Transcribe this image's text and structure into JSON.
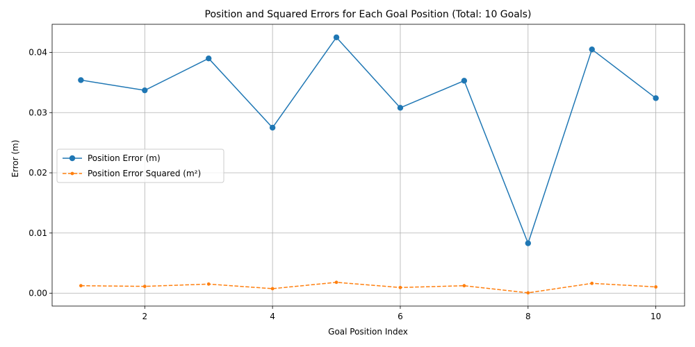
{
  "chart_data": {
    "type": "line",
    "title": "Position and Squared Errors for Each Goal Position (Total: 10 Goals)",
    "xlabel": "Goal Position Index",
    "ylabel": "Error (m)",
    "x": [
      1,
      2,
      3,
      4,
      5,
      6,
      7,
      8,
      9,
      10
    ],
    "xlim": [
      0.55,
      10.45
    ],
    "ylim": [
      -0.00213,
      0.04467
    ],
    "xticks": [
      2,
      4,
      6,
      8,
      10
    ],
    "yticks": [
      0.0,
      0.01,
      0.02,
      0.03,
      0.04
    ],
    "ytick_labels": [
      "0.00",
      "0.01",
      "0.02",
      "0.03",
      "0.04"
    ],
    "grid": true,
    "legend_position": "center-left",
    "series": [
      {
        "name": "Position Error (m)",
        "color": "#1f77b4",
        "line_style": "solid",
        "marker": "circle",
        "values": [
          0.0354,
          0.0337,
          0.039,
          0.0275,
          0.0425,
          0.0308,
          0.0353,
          0.0083,
          0.0405,
          0.0324
        ]
      },
      {
        "name": "Position Error Squared (m²)",
        "color": "#ff7f0e",
        "line_style": "dashed",
        "marker": "circle-small",
        "values": [
          0.00125,
          0.00114,
          0.00152,
          0.00076,
          0.00181,
          0.00095,
          0.00125,
          7e-05,
          0.00164,
          0.00105
        ]
      }
    ]
  }
}
